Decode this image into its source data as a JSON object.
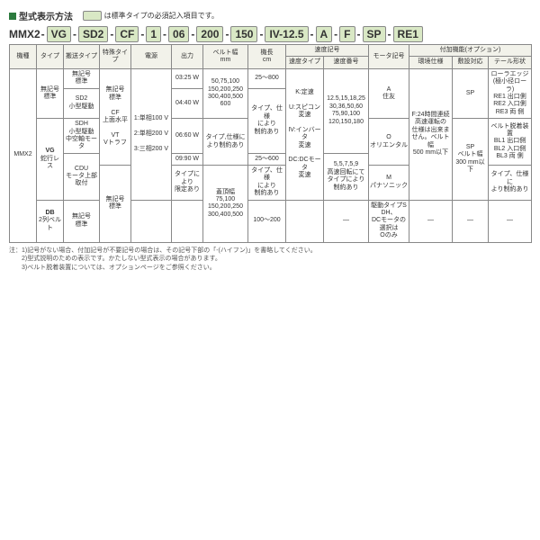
{
  "title": "型式表示方法",
  "inline_note_prefix": "",
  "inline_note": "は標準タイプの必須記入項目です。",
  "model_segments": [
    "MMX2",
    "VG",
    "SD2",
    "CF",
    "1",
    "06",
    "200",
    "150",
    "IV-12.5",
    "A",
    "F",
    "SP",
    "RE1"
  ],
  "headers": {
    "kishu": "機種",
    "type": "タイプ",
    "sokomen": "搬送タイプ",
    "tokushu": "特殊タイプ",
    "dengen": "電源",
    "shutsuryoku": "出力",
    "belt_w": "ベルト幅\nmm",
    "kichou": "機長\ncm",
    "sokudo": "速度記号",
    "sokudo_type": "速度タイプ",
    "sokudo_bango": "速度番号",
    "motor": "モータ記号",
    "option": "付加機能(オプション)",
    "kankyo": "環境仕様",
    "shiki": "敷設対応",
    "tail": "テール形状"
  },
  "cells": {
    "mmx2": "MMX2",
    "type_std_code": "無記号",
    "type_std": "標準",
    "type_vg": "VG",
    "type_vg_sub": "蛇行レス",
    "type_db": "DB",
    "type_db_sub": "2列ベルト",
    "haso_std_code": "無記号",
    "haso_std": "標準",
    "haso_sd2": "SD2\n小型駆動",
    "haso_sdh": "SDH\n小型駆動\n中空軸モータ",
    "haso_cdu": "CDU\nモータ上部取付",
    "tokushu_std_code": "無記号",
    "tokushu_std": "標準",
    "tokushu_cf": "CF\n上面水平",
    "tokushu_vt": "VT\nVトラフ",
    "dengen_1": "1:単相100 V",
    "dengen_2": "2:単相200 V",
    "dengen_3": "3:三相200 V",
    "out_03": "03:25 W",
    "out_04": "04:40 W",
    "out_06": "06:60 W",
    "out_09": "09:90 W",
    "out_note": "タイプにより\n限定あり",
    "belt_a": "50,75,100\n150,200,250\n300,400,500\n600",
    "belt_b": "タイプ,仕様に\nより制約あり",
    "belt_c": "蓋頂幅\n75,100\n150,200,250\n300,400,500",
    "kichou_a": "25〜800",
    "kichou_b": "タイプ、仕様\nにより\n制約あり",
    "kichou_c": "25〜600",
    "kichou_d": "タイプ、仕様\nにより\n制約あり",
    "kichou_e": "100〜200",
    "sokT_k": "K:定速",
    "sokT_u": "U:スピコン\n変速",
    "sokT_iv": "IV:インバータ\n変速",
    "sokT_dc": "DC:DCモータ\n変速",
    "sokN_up": "12.5,15,18,25\n30,36,50,60\n75,90,100\n120,150,180",
    "sokN_low": "5,5,7,5,9\n高速回転にて\nタイプにより\n制約あり",
    "sokN_dash": "—",
    "motor_a": "A\n住友",
    "motor_o": "O\nオリエンタル",
    "motor_m": "M\nパナソニック",
    "motor_note": "駆動タイプSDH、\nDCモータの選択は\nOのみ",
    "kankyo_f": "F:24時間連続\n高速運転の\n仕様は出来ま\nせん。ベルト幅\n500 mm以下",
    "kankyo_dash": "—",
    "shiki_sp": "SP",
    "shiki_sp2": "SP\nベルト幅\n300 mm以下",
    "shiki_dash": "—",
    "tail_list": "ローラエッジ\n(極小径ローラ)\nRE1 出口側\nRE2 入口側\nRE3 両 側",
    "tail_list2": "ベルト脱着装置\nBL1 出口側\nBL2 入口側\nBL3 両 側",
    "tail_note": "タイプ、仕様に\nより制約あり",
    "tail_dash": "—"
  },
  "footnotes": [
    "注：1)記号がない場合、付加記号が不要記号の場合は、その記号下部の「-(ハイフン)」を書略してください。",
    "　　2)型式説明のための表示です。かたしない型式表示の場合があります。",
    "　　3)ベルト脱着装置については、オプションページをご参照ください。"
  ],
  "colors": {
    "header_bg": "#f2f2ea",
    "badge_bg": "#d9e8c5",
    "accent": "#2b7a3d",
    "border": "#888888"
  }
}
